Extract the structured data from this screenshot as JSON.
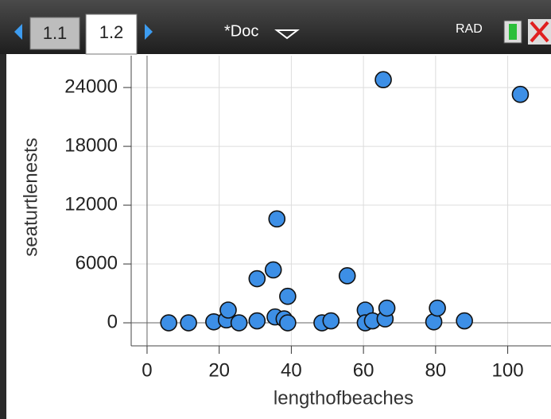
{
  "tabs": [
    "1.1",
    "1.2"
  ],
  "doc_title": "*Doc",
  "mode": "RAD",
  "chart_data": {
    "type": "scatter",
    "x_label": "lengthofbeaches",
    "y_label": "seaturtlenests",
    "color": "#3d8fe6",
    "x": [
      6,
      11.5,
      18.5,
      22,
      22.5,
      25.5,
      30.5,
      30.5,
      35,
      35.5,
      36,
      38,
      39,
      39,
      48.5,
      51,
      55.5,
      60.5,
      60.5,
      62.5,
      65.5,
      66,
      66.5,
      79.5,
      80.5,
      88,
      103.5
    ],
    "values": [
      0,
      0,
      100,
      300,
      1300,
      0,
      200,
      4500,
      5400,
      600,
      10600,
      400,
      2700,
      0,
      0,
      200,
      4800,
      1300,
      0,
      200,
      24800,
      400,
      1500,
      100,
      1500,
      200,
      23300
    ],
    "xlim": [
      -4.4,
      112
    ],
    "ylim": [
      -2350,
      27250
    ],
    "xticks": [
      0,
      20,
      40,
      60,
      80,
      100
    ],
    "yticks": [
      0,
      6000,
      12000,
      18000,
      24000
    ],
    "grid": true
  }
}
